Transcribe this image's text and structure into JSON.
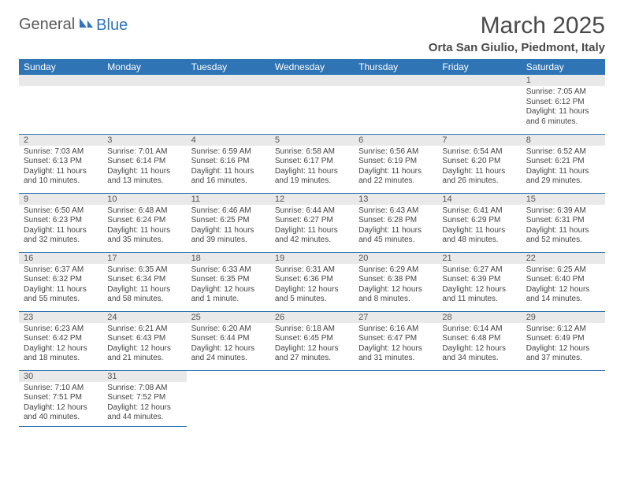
{
  "logo": {
    "text1": "General",
    "text2": "Blue"
  },
  "title": "March 2025",
  "subtitle": "Orta San Giulio, Piedmont, Italy",
  "colors": {
    "header_bg": "#2f74b5",
    "header_fg": "#ffffff",
    "daynum_bg": "#e9e9e9",
    "border": "#2f74b5",
    "text": "#333333"
  },
  "weekdays": [
    "Sunday",
    "Monday",
    "Tuesday",
    "Wednesday",
    "Thursday",
    "Friday",
    "Saturday"
  ],
  "weeks": [
    [
      {
        "n": "",
        "lines": []
      },
      {
        "n": "",
        "lines": []
      },
      {
        "n": "",
        "lines": []
      },
      {
        "n": "",
        "lines": []
      },
      {
        "n": "",
        "lines": []
      },
      {
        "n": "",
        "lines": []
      },
      {
        "n": "1",
        "lines": [
          "Sunrise: 7:05 AM",
          "Sunset: 6:12 PM",
          "Daylight: 11 hours and 6 minutes."
        ]
      }
    ],
    [
      {
        "n": "2",
        "lines": [
          "Sunrise: 7:03 AM",
          "Sunset: 6:13 PM",
          "Daylight: 11 hours and 10 minutes."
        ]
      },
      {
        "n": "3",
        "lines": [
          "Sunrise: 7:01 AM",
          "Sunset: 6:14 PM",
          "Daylight: 11 hours and 13 minutes."
        ]
      },
      {
        "n": "4",
        "lines": [
          "Sunrise: 6:59 AM",
          "Sunset: 6:16 PM",
          "Daylight: 11 hours and 16 minutes."
        ]
      },
      {
        "n": "5",
        "lines": [
          "Sunrise: 6:58 AM",
          "Sunset: 6:17 PM",
          "Daylight: 11 hours and 19 minutes."
        ]
      },
      {
        "n": "6",
        "lines": [
          "Sunrise: 6:56 AM",
          "Sunset: 6:19 PM",
          "Daylight: 11 hours and 22 minutes."
        ]
      },
      {
        "n": "7",
        "lines": [
          "Sunrise: 6:54 AM",
          "Sunset: 6:20 PM",
          "Daylight: 11 hours and 26 minutes."
        ]
      },
      {
        "n": "8",
        "lines": [
          "Sunrise: 6:52 AM",
          "Sunset: 6:21 PM",
          "Daylight: 11 hours and 29 minutes."
        ]
      }
    ],
    [
      {
        "n": "9",
        "lines": [
          "Sunrise: 6:50 AM",
          "Sunset: 6:23 PM",
          "Daylight: 11 hours and 32 minutes."
        ]
      },
      {
        "n": "10",
        "lines": [
          "Sunrise: 6:48 AM",
          "Sunset: 6:24 PM",
          "Daylight: 11 hours and 35 minutes."
        ]
      },
      {
        "n": "11",
        "lines": [
          "Sunrise: 6:46 AM",
          "Sunset: 6:25 PM",
          "Daylight: 11 hours and 39 minutes."
        ]
      },
      {
        "n": "12",
        "lines": [
          "Sunrise: 6:44 AM",
          "Sunset: 6:27 PM",
          "Daylight: 11 hours and 42 minutes."
        ]
      },
      {
        "n": "13",
        "lines": [
          "Sunrise: 6:43 AM",
          "Sunset: 6:28 PM",
          "Daylight: 11 hours and 45 minutes."
        ]
      },
      {
        "n": "14",
        "lines": [
          "Sunrise: 6:41 AM",
          "Sunset: 6:29 PM",
          "Daylight: 11 hours and 48 minutes."
        ]
      },
      {
        "n": "15",
        "lines": [
          "Sunrise: 6:39 AM",
          "Sunset: 6:31 PM",
          "Daylight: 11 hours and 52 minutes."
        ]
      }
    ],
    [
      {
        "n": "16",
        "lines": [
          "Sunrise: 6:37 AM",
          "Sunset: 6:32 PM",
          "Daylight: 11 hours and 55 minutes."
        ]
      },
      {
        "n": "17",
        "lines": [
          "Sunrise: 6:35 AM",
          "Sunset: 6:34 PM",
          "Daylight: 11 hours and 58 minutes."
        ]
      },
      {
        "n": "18",
        "lines": [
          "Sunrise: 6:33 AM",
          "Sunset: 6:35 PM",
          "Daylight: 12 hours and 1 minute."
        ]
      },
      {
        "n": "19",
        "lines": [
          "Sunrise: 6:31 AM",
          "Sunset: 6:36 PM",
          "Daylight: 12 hours and 5 minutes."
        ]
      },
      {
        "n": "20",
        "lines": [
          "Sunrise: 6:29 AM",
          "Sunset: 6:38 PM",
          "Daylight: 12 hours and 8 minutes."
        ]
      },
      {
        "n": "21",
        "lines": [
          "Sunrise: 6:27 AM",
          "Sunset: 6:39 PM",
          "Daylight: 12 hours and 11 minutes."
        ]
      },
      {
        "n": "22",
        "lines": [
          "Sunrise: 6:25 AM",
          "Sunset: 6:40 PM",
          "Daylight: 12 hours and 14 minutes."
        ]
      }
    ],
    [
      {
        "n": "23",
        "lines": [
          "Sunrise: 6:23 AM",
          "Sunset: 6:42 PM",
          "Daylight: 12 hours and 18 minutes."
        ]
      },
      {
        "n": "24",
        "lines": [
          "Sunrise: 6:21 AM",
          "Sunset: 6:43 PM",
          "Daylight: 12 hours and 21 minutes."
        ]
      },
      {
        "n": "25",
        "lines": [
          "Sunrise: 6:20 AM",
          "Sunset: 6:44 PM",
          "Daylight: 12 hours and 24 minutes."
        ]
      },
      {
        "n": "26",
        "lines": [
          "Sunrise: 6:18 AM",
          "Sunset: 6:45 PM",
          "Daylight: 12 hours and 27 minutes."
        ]
      },
      {
        "n": "27",
        "lines": [
          "Sunrise: 6:16 AM",
          "Sunset: 6:47 PM",
          "Daylight: 12 hours and 31 minutes."
        ]
      },
      {
        "n": "28",
        "lines": [
          "Sunrise: 6:14 AM",
          "Sunset: 6:48 PM",
          "Daylight: 12 hours and 34 minutes."
        ]
      },
      {
        "n": "29",
        "lines": [
          "Sunrise: 6:12 AM",
          "Sunset: 6:49 PM",
          "Daylight: 12 hours and 37 minutes."
        ]
      }
    ],
    [
      {
        "n": "30",
        "lines": [
          "Sunrise: 7:10 AM",
          "Sunset: 7:51 PM",
          "Daylight: 12 hours and 40 minutes."
        ]
      },
      {
        "n": "31",
        "lines": [
          "Sunrise: 7:08 AM",
          "Sunset: 7:52 PM",
          "Daylight: 12 hours and 44 minutes."
        ]
      },
      {
        "n": "",
        "lines": []
      },
      {
        "n": "",
        "lines": []
      },
      {
        "n": "",
        "lines": []
      },
      {
        "n": "",
        "lines": []
      },
      {
        "n": "",
        "lines": []
      }
    ]
  ]
}
